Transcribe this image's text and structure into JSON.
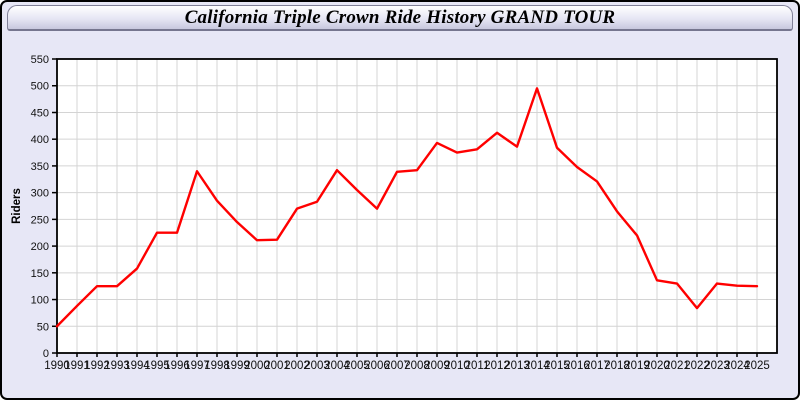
{
  "window": {
    "colors": {
      "page_bg": "#e7e7f6",
      "outer_border": "#000000",
      "titlebar_gradient_top": "#ffffff",
      "titlebar_gradient_mid": "#e6e6f4",
      "titlebar_gradient_bottom": "#c7c7de",
      "titlebar_border": "#808098"
    }
  },
  "chart_data": {
    "type": "line",
    "title": "California Triple Crown Ride History GRAND TOUR",
    "xlabel": "",
    "ylabel": "Riders",
    "x": [
      1990,
      1991,
      1992,
      1993,
      1994,
      1995,
      1996,
      1997,
      1998,
      1999,
      2000,
      2001,
      2002,
      2003,
      2004,
      2005,
      2006,
      2007,
      2008,
      2009,
      2010,
      2011,
      2012,
      2013,
      2014,
      2015,
      2016,
      2017,
      2018,
      2019,
      2020,
      2021,
      2022,
      2023,
      2024,
      2025
    ],
    "series": [
      {
        "name": "Riders",
        "color": "#ff0000",
        "values": [
          50,
          88,
          125,
          125,
          158,
          225,
          225,
          340,
          285,
          245,
          211,
          212,
          270,
          283,
          342,
          305,
          270,
          339,
          342,
          393,
          375,
          381,
          412,
          386,
          495,
          384,
          348,
          321,
          265,
          220,
          136,
          130,
          84,
          130,
          126,
          125
        ]
      }
    ],
    "ylim": [
      0,
      550
    ],
    "ytick_step": 50,
    "grid": true,
    "legend": "none",
    "plot_bg": "#ffffff",
    "grid_color": "#d4d4d4",
    "axis_color": "#000000",
    "tick_label_color": "#111111"
  }
}
